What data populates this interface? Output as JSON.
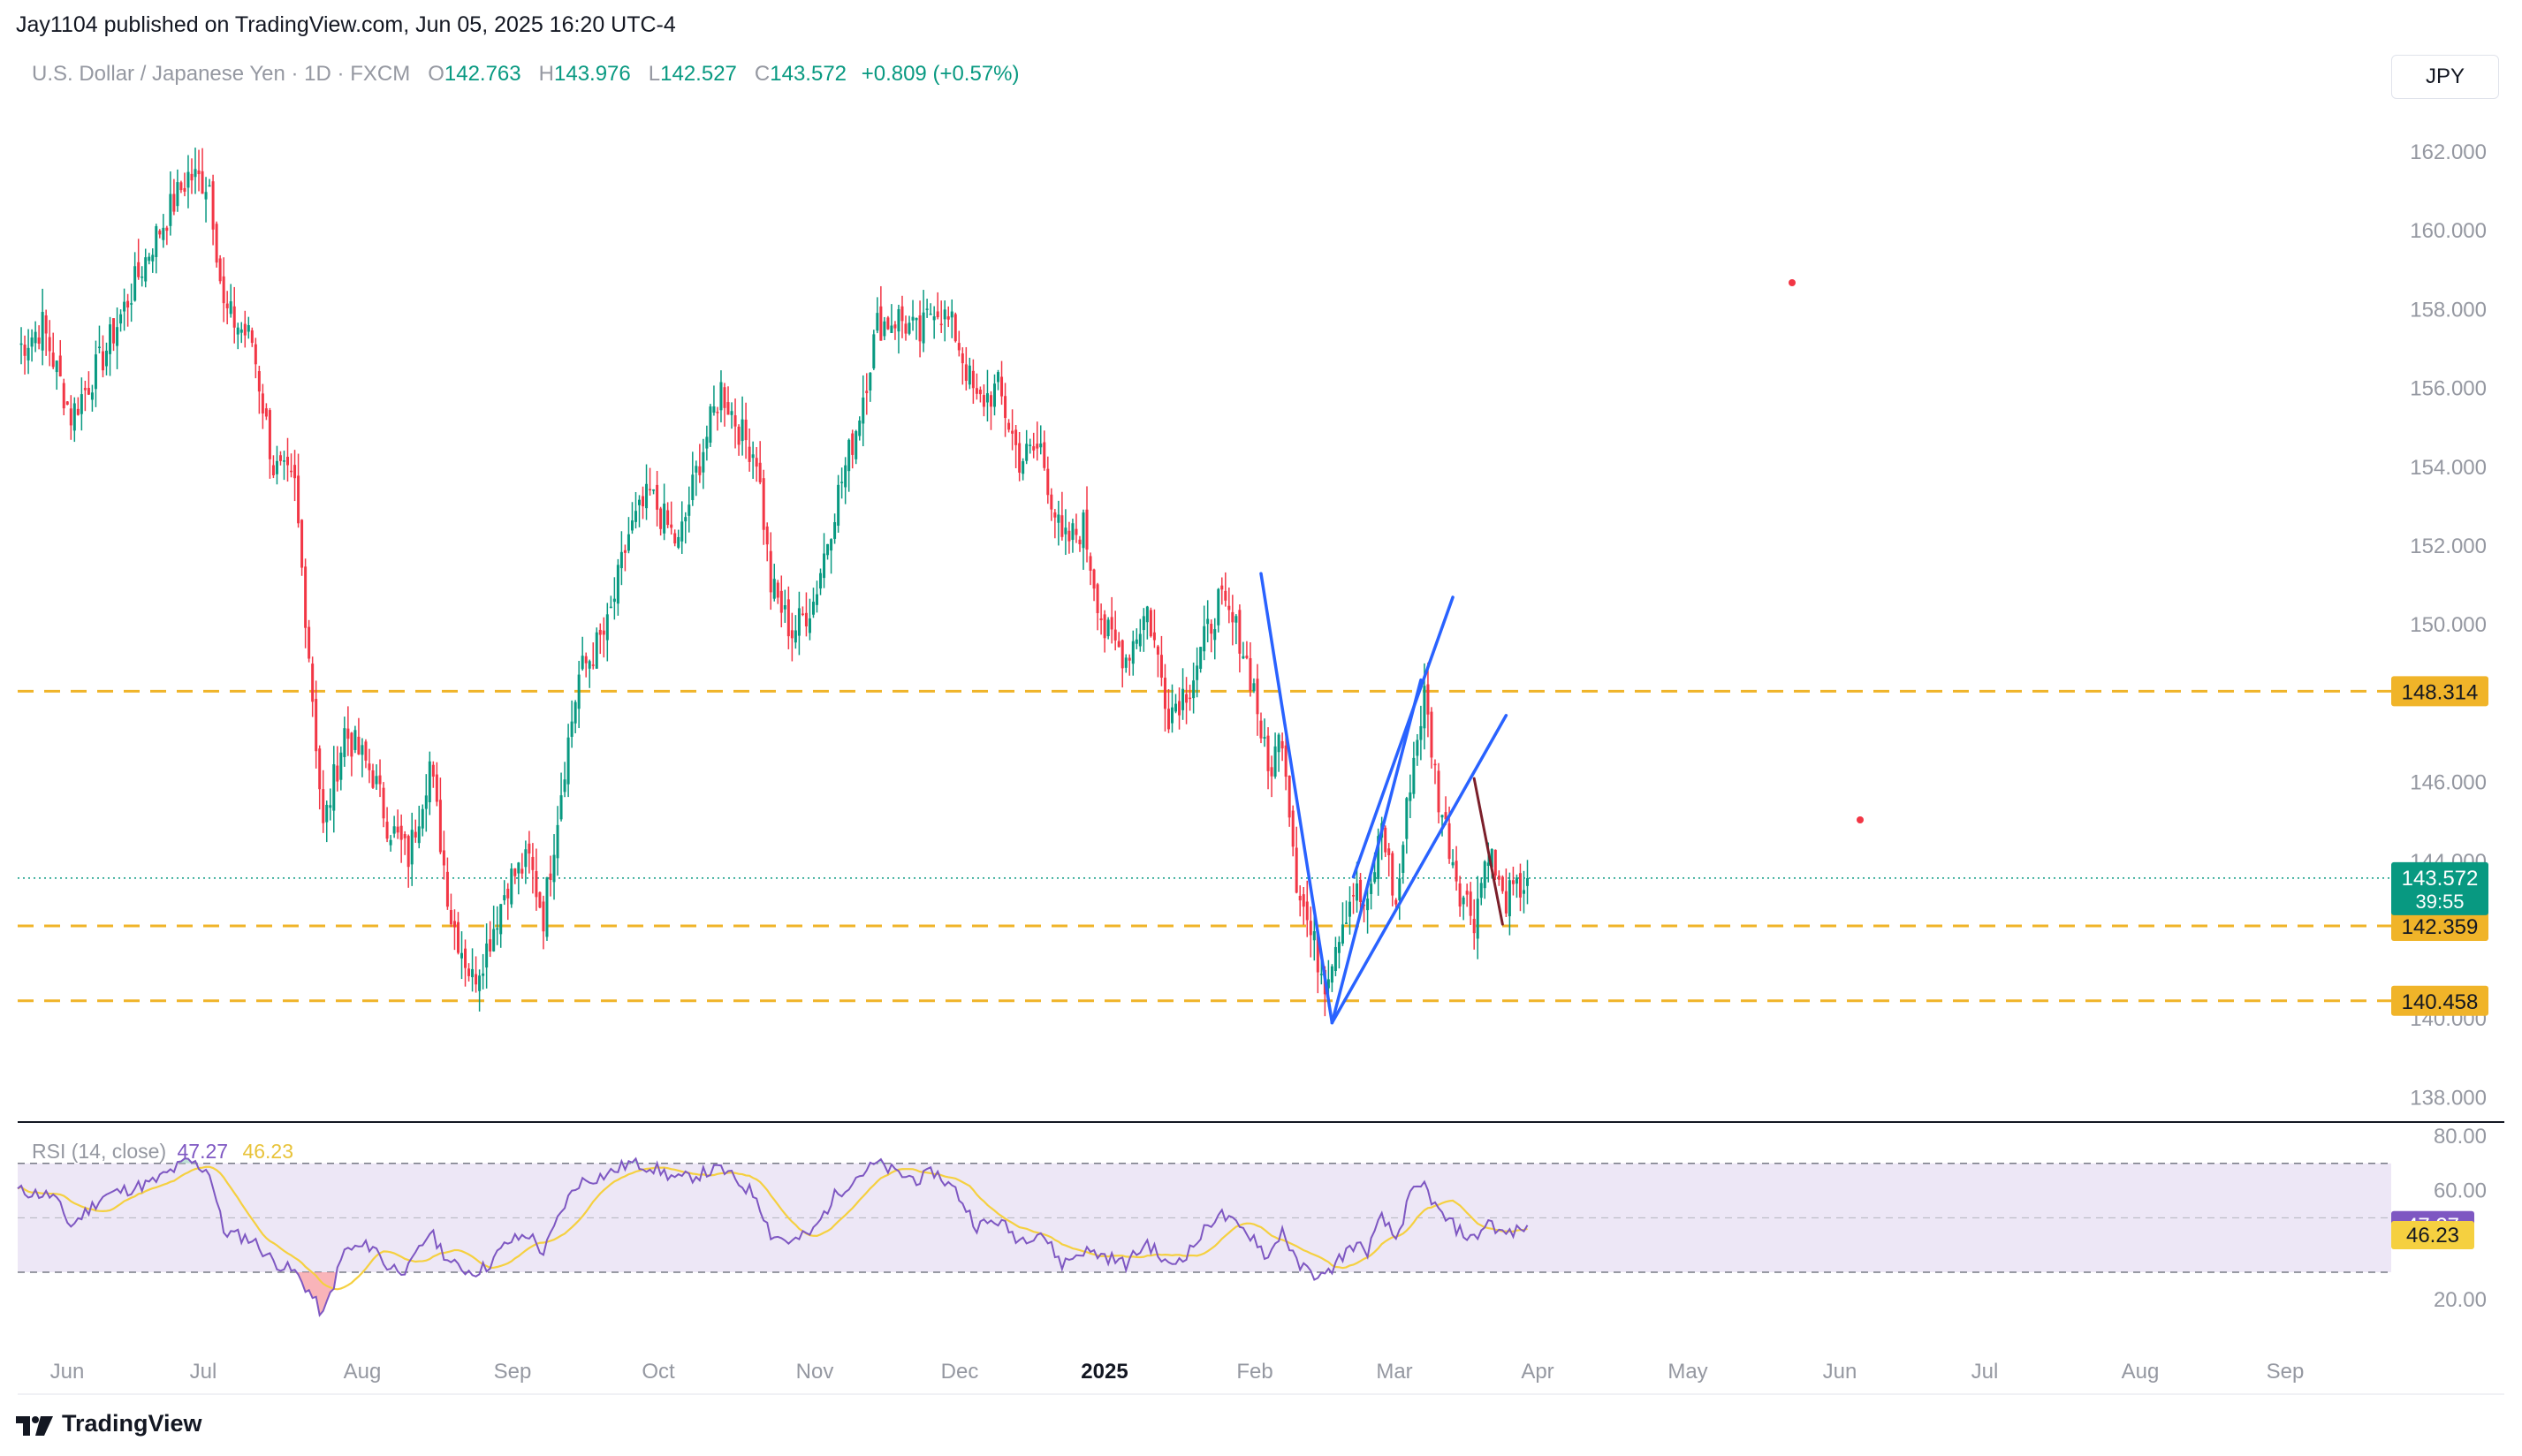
{
  "header": {
    "published": "Jay1104 published on TradingView.com, Jun 05, 2025 16:20 UTC-4"
  },
  "legend": {
    "symbol": "U.S. Dollar / Japanese Yen · 1D · FXCM",
    "open_label": "O",
    "open": "142.763",
    "high_label": "H",
    "high": "143.976",
    "low_label": "L",
    "low": "142.527",
    "close_label": "C",
    "close": "143.572",
    "change": "+0.809 (+0.57%)"
  },
  "currency_button": "JPY",
  "rsi_legend": {
    "label": "RSI (14, close)",
    "rsi": "47.27",
    "ma": "46.23"
  },
  "footer": {
    "brand": "TradingView"
  },
  "colors": {
    "up": "#089981",
    "down": "#f23645",
    "trendline": "#2962ff",
    "dark_trend": "#7b1f2a",
    "level": "#f0b429",
    "rsi": "#7e57c2",
    "rsi_ma": "#f5d040",
    "rsi_band": "#ede7f6"
  },
  "chart_data": {
    "type": "candlestick",
    "y_ticks": [
      "162.000",
      "160.000",
      "158.000",
      "156.000",
      "154.000",
      "152.000",
      "150.000",
      "146.000",
      "144.000",
      "140.000",
      "138.000"
    ],
    "x_ticks": [
      "Jun",
      "Jul",
      "Aug",
      "Sep",
      "Oct",
      "Nov",
      "Dec",
      "2025",
      "Feb",
      "Mar",
      "Apr",
      "May",
      "Jun",
      "Jul",
      "Aug",
      "Sep"
    ],
    "ylim": [
      137.0,
      163.0
    ],
    "levels": [
      {
        "price": 148.314,
        "label": "148.314"
      },
      {
        "price": 142.359,
        "label": "142.359"
      },
      {
        "price": 140.458,
        "label": "140.458"
      }
    ],
    "last_price": {
      "price": 143.572,
      "label": "143.572",
      "countdown": "39:55"
    },
    "anchors": [
      {
        "t": 0,
        "p": 157.0
      },
      {
        "t": 7,
        "p": 157.6
      },
      {
        "t": 15,
        "p": 155.3
      },
      {
        "t": 24,
        "p": 156.8
      },
      {
        "t": 38,
        "p": 159.7
      },
      {
        "t": 48,
        "p": 161.4
      },
      {
        "t": 54,
        "p": 161.2
      },
      {
        "t": 58,
        "p": 158.0
      },
      {
        "t": 66,
        "p": 157.2
      },
      {
        "t": 72,
        "p": 154.0
      },
      {
        "t": 78,
        "p": 153.5
      },
      {
        "t": 82,
        "p": 149.3
      },
      {
        "t": 86,
        "p": 144.8
      },
      {
        "t": 92,
        "p": 147.3
      },
      {
        "t": 100,
        "p": 146.2
      },
      {
        "t": 104,
        "p": 145.0
      },
      {
        "t": 110,
        "p": 144.1
      },
      {
        "t": 116,
        "p": 146.5
      },
      {
        "t": 122,
        "p": 142.6
      },
      {
        "t": 128,
        "p": 141.0
      },
      {
        "t": 132,
        "p": 141.8
      },
      {
        "t": 138,
        "p": 143.5
      },
      {
        "t": 144,
        "p": 144.0
      },
      {
        "t": 148,
        "p": 142.6
      },
      {
        "t": 154,
        "p": 146.5
      },
      {
        "t": 158,
        "p": 148.7
      },
      {
        "t": 166,
        "p": 149.9
      },
      {
        "t": 172,
        "p": 152.3
      },
      {
        "t": 178,
        "p": 153.3
      },
      {
        "t": 186,
        "p": 152.0
      },
      {
        "t": 192,
        "p": 154.2
      },
      {
        "t": 198,
        "p": 156.0
      },
      {
        "t": 204,
        "p": 154.8
      },
      {
        "t": 208,
        "p": 154.3
      },
      {
        "t": 212,
        "p": 151.0
      },
      {
        "t": 218,
        "p": 149.8
      },
      {
        "t": 224,
        "p": 150.6
      },
      {
        "t": 230,
        "p": 153.0
      },
      {
        "t": 236,
        "p": 155.0
      },
      {
        "t": 242,
        "p": 157.6
      },
      {
        "t": 248,
        "p": 157.8
      },
      {
        "t": 254,
        "p": 157.3
      },
      {
        "t": 258,
        "p": 158.2
      },
      {
        "t": 264,
        "p": 157.4
      },
      {
        "t": 270,
        "p": 155.6
      },
      {
        "t": 276,
        "p": 156.0
      },
      {
        "t": 282,
        "p": 154.2
      },
      {
        "t": 288,
        "p": 154.5
      },
      {
        "t": 294,
        "p": 152.0
      },
      {
        "t": 300,
        "p": 152.5
      },
      {
        "t": 306,
        "p": 149.8
      },
      {
        "t": 312,
        "p": 149.2
      },
      {
        "t": 318,
        "p": 150.4
      },
      {
        "t": 324,
        "p": 147.8
      },
      {
        "t": 330,
        "p": 148.5
      },
      {
        "t": 338,
        "p": 150.6
      },
      {
        "t": 344,
        "p": 149.7
      },
      {
        "t": 348,
        "p": 148.4
      },
      {
        "t": 352,
        "p": 146.2
      },
      {
        "t": 356,
        "p": 147.3
      },
      {
        "t": 360,
        "p": 143.6
      },
      {
        "t": 364,
        "p": 142.1
      },
      {
        "t": 368,
        "p": 141.0
      },
      {
        "t": 372,
        "p": 142.3
      },
      {
        "t": 376,
        "p": 143.3
      },
      {
        "t": 380,
        "p": 142.7
      },
      {
        "t": 384,
        "p": 145.0
      },
      {
        "t": 388,
        "p": 142.8
      },
      {
        "t": 392,
        "p": 146.1
      },
      {
        "t": 396,
        "p": 148.2
      },
      {
        "t": 400,
        "p": 145.6
      },
      {
        "t": 406,
        "p": 143.3
      },
      {
        "t": 410,
        "p": 142.6
      },
      {
        "t": 414,
        "p": 144.4
      },
      {
        "t": 418,
        "p": 143.0
      },
      {
        "t": 422,
        "p": 143.2
      },
      {
        "t": 425,
        "p": 143.57
      }
    ],
    "rsi": {
      "label": "RSI (14, close)",
      "rsi_value": "47.27",
      "ma_value": "46.23",
      "y_ticks": [
        "80.00",
        "60.00",
        "20.00"
      ],
      "band": [
        30,
        70
      ],
      "mid": 50,
      "ylim": [
        10,
        85
      ],
      "anchors": [
        {
          "t": 0,
          "v": 60
        },
        {
          "t": 10,
          "v": 58
        },
        {
          "t": 15,
          "v": 47
        },
        {
          "t": 24,
          "v": 58
        },
        {
          "t": 38,
          "v": 63
        },
        {
          "t": 48,
          "v": 71
        },
        {
          "t": 54,
          "v": 67
        },
        {
          "t": 58,
          "v": 45
        },
        {
          "t": 66,
          "v": 42
        },
        {
          "t": 72,
          "v": 34
        },
        {
          "t": 78,
          "v": 30
        },
        {
          "t": 82,
          "v": 23
        },
        {
          "t": 86,
          "v": 14
        },
        {
          "t": 92,
          "v": 38
        },
        {
          "t": 100,
          "v": 40
        },
        {
          "t": 104,
          "v": 32
        },
        {
          "t": 110,
          "v": 31
        },
        {
          "t": 116,
          "v": 45
        },
        {
          "t": 122,
          "v": 33
        },
        {
          "t": 128,
          "v": 30
        },
        {
          "t": 132,
          "v": 32
        },
        {
          "t": 138,
          "v": 41
        },
        {
          "t": 144,
          "v": 44
        },
        {
          "t": 148,
          "v": 37
        },
        {
          "t": 154,
          "v": 55
        },
        {
          "t": 158,
          "v": 63
        },
        {
          "t": 166,
          "v": 66
        },
        {
          "t": 172,
          "v": 70
        },
        {
          "t": 178,
          "v": 69
        },
        {
          "t": 186,
          "v": 64
        },
        {
          "t": 192,
          "v": 66
        },
        {
          "t": 198,
          "v": 68
        },
        {
          "t": 204,
          "v": 62
        },
        {
          "t": 208,
          "v": 58
        },
        {
          "t": 212,
          "v": 44
        },
        {
          "t": 218,
          "v": 41
        },
        {
          "t": 224,
          "v": 45
        },
        {
          "t": 230,
          "v": 58
        },
        {
          "t": 236,
          "v": 65
        },
        {
          "t": 242,
          "v": 70
        },
        {
          "t": 248,
          "v": 66
        },
        {
          "t": 254,
          "v": 64
        },
        {
          "t": 258,
          "v": 67
        },
        {
          "t": 264,
          "v": 60
        },
        {
          "t": 270,
          "v": 47
        },
        {
          "t": 276,
          "v": 49
        },
        {
          "t": 282,
          "v": 42
        },
        {
          "t": 288,
          "v": 45
        },
        {
          "t": 294,
          "v": 33
        },
        {
          "t": 300,
          "v": 38
        },
        {
          "t": 306,
          "v": 36
        },
        {
          "t": 312,
          "v": 33
        },
        {
          "t": 318,
          "v": 41
        },
        {
          "t": 324,
          "v": 32
        },
        {
          "t": 330,
          "v": 38
        },
        {
          "t": 338,
          "v": 52
        },
        {
          "t": 344,
          "v": 46
        },
        {
          "t": 348,
          "v": 43
        },
        {
          "t": 352,
          "v": 35
        },
        {
          "t": 356,
          "v": 46
        },
        {
          "t": 360,
          "v": 33
        },
        {
          "t": 364,
          "v": 30
        },
        {
          "t": 368,
          "v": 28
        },
        {
          "t": 372,
          "v": 35
        },
        {
          "t": 376,
          "v": 40
        },
        {
          "t": 380,
          "v": 38
        },
        {
          "t": 384,
          "v": 50
        },
        {
          "t": 388,
          "v": 42
        },
        {
          "t": 392,
          "v": 58
        },
        {
          "t": 396,
          "v": 62
        },
        {
          "t": 400,
          "v": 52
        },
        {
          "t": 406,
          "v": 45
        },
        {
          "t": 410,
          "v": 42
        },
        {
          "t": 414,
          "v": 49
        },
        {
          "t": 418,
          "v": 44
        },
        {
          "t": 422,
          "v": 45
        },
        {
          "t": 425,
          "v": 47.27
        }
      ]
    }
  }
}
